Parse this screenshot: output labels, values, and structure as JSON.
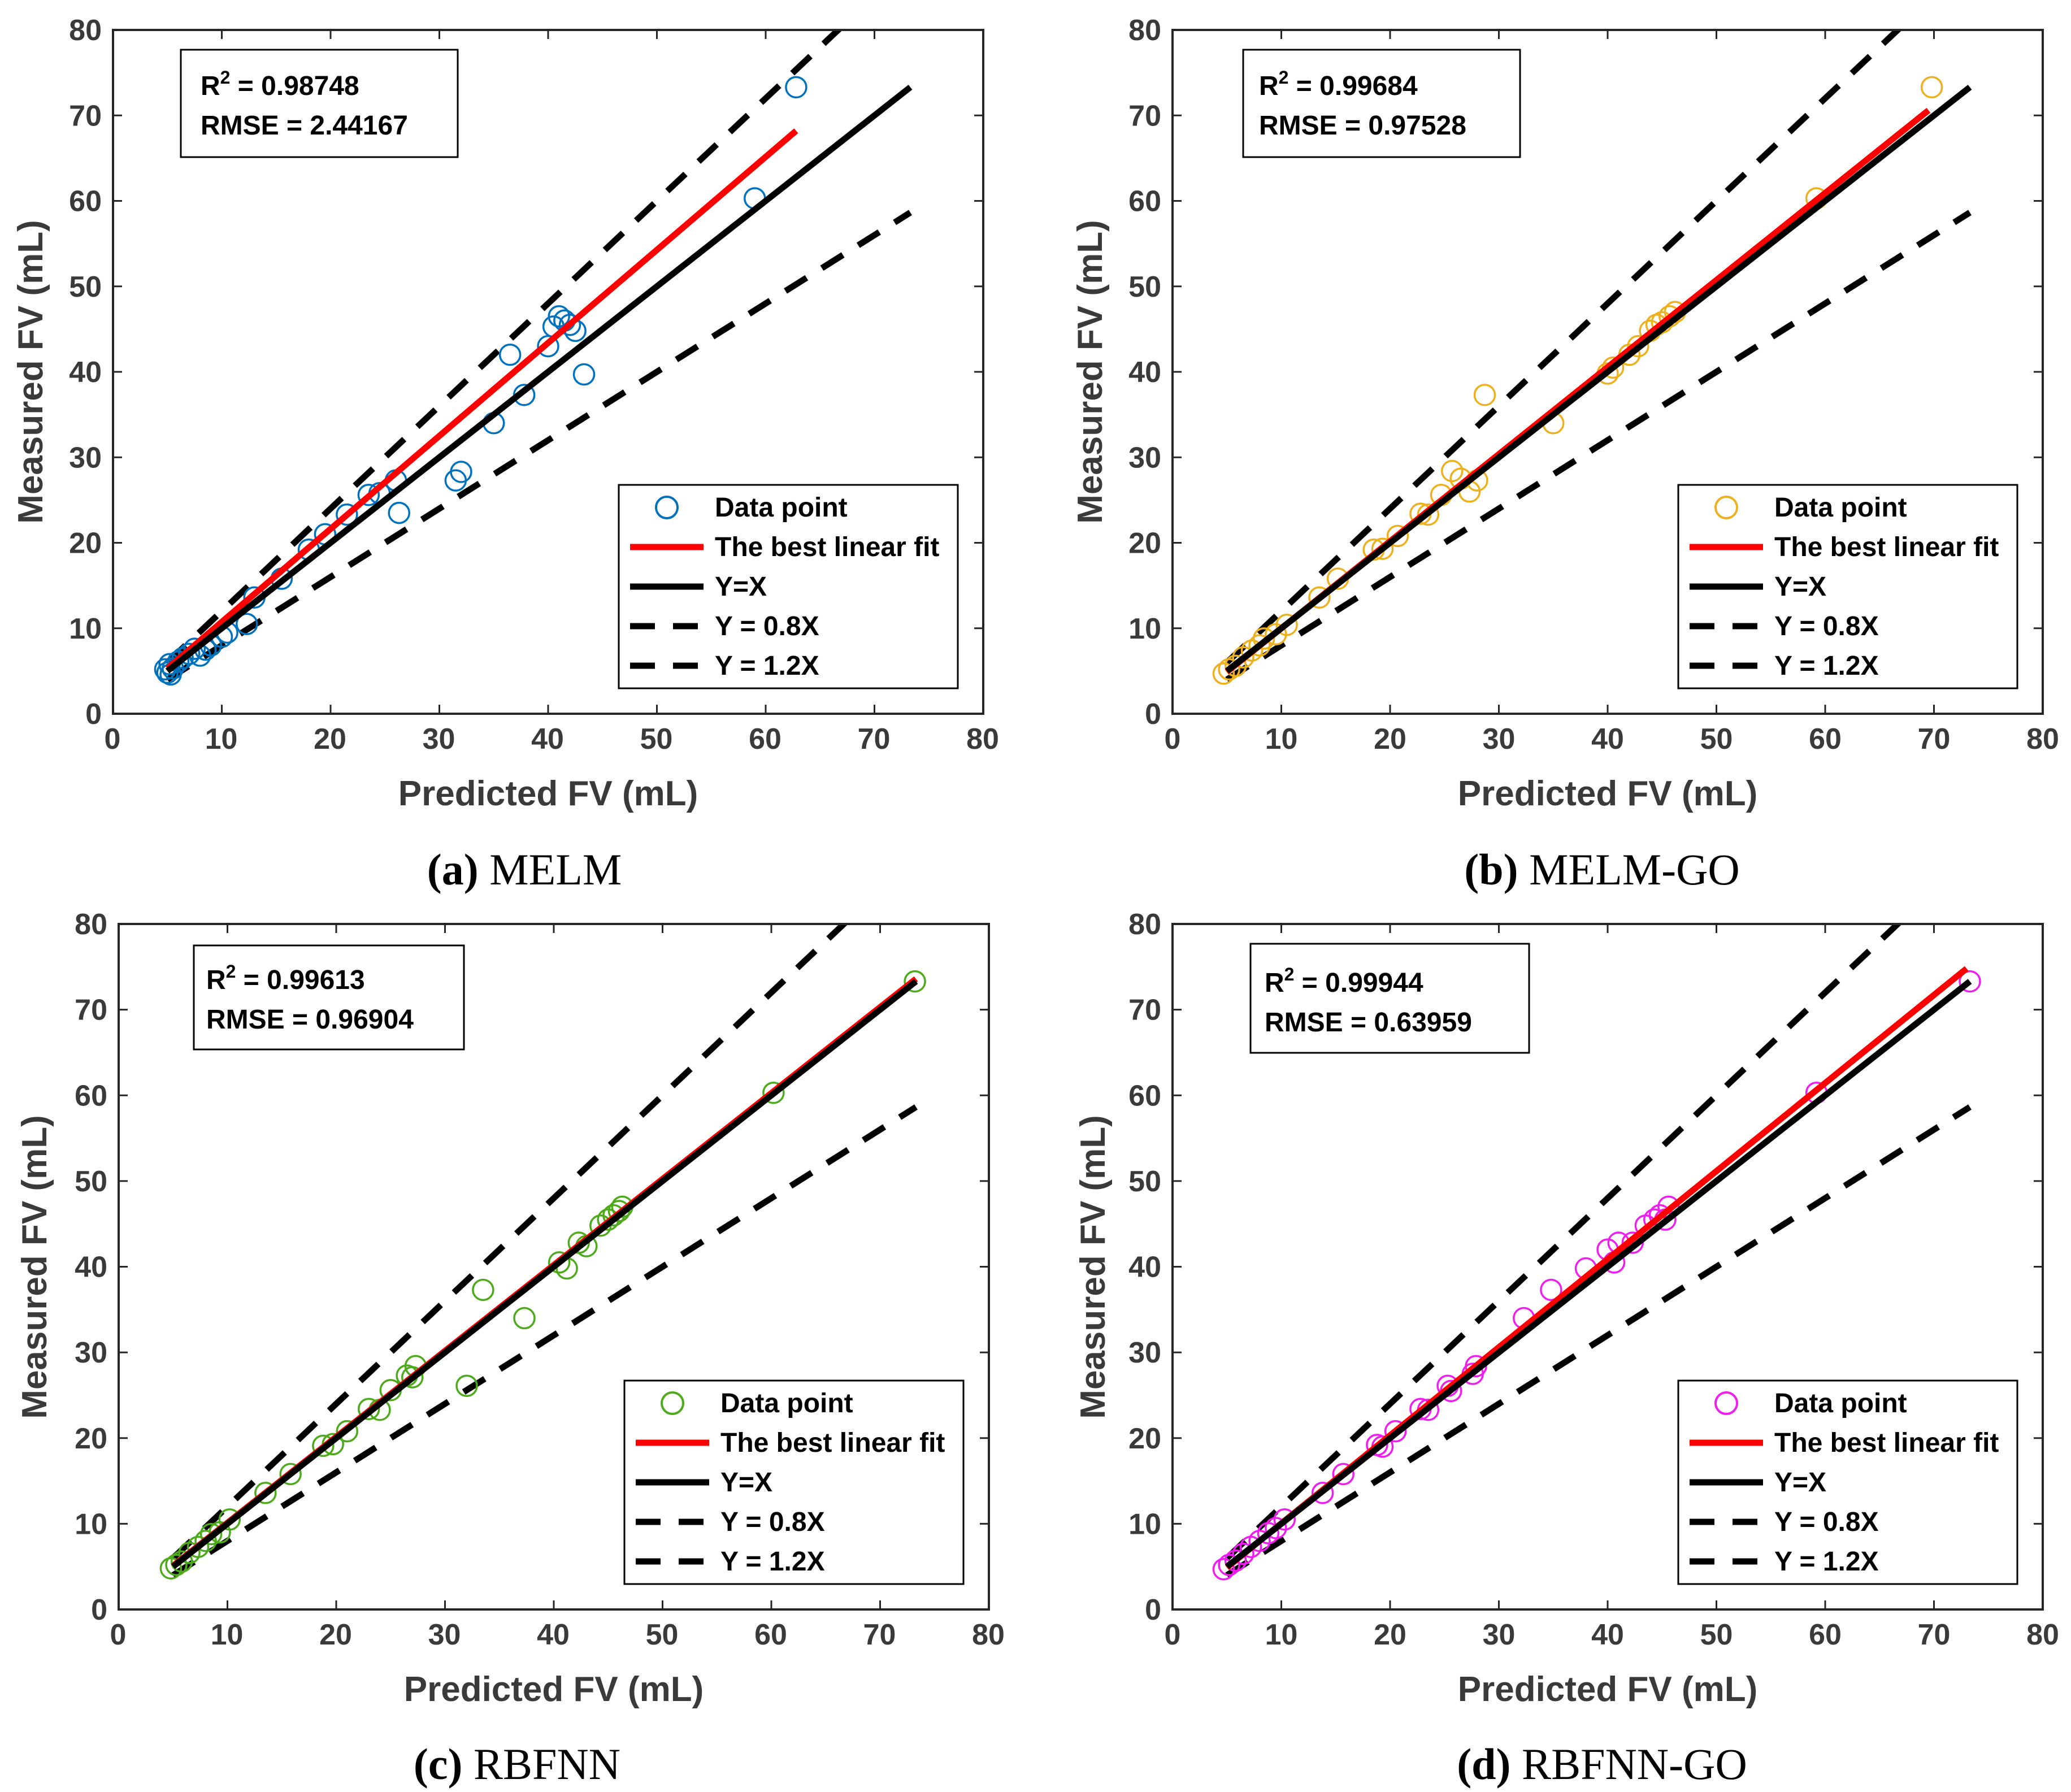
{
  "colors": {
    "melm": "#0072BD",
    "melm_go": "#EDB120",
    "rbfnn": "#4DAA1A",
    "rbfnn_go": "#EE1FEE",
    "best_fit": "#FF0000",
    "reference_lines": "#000000"
  },
  "chart_data": [
    {
      "type": "scatter",
      "panel": "a",
      "caption_letter": "(a)",
      "caption_name": "MELM",
      "xlabel": "Predicted FV (mL)",
      "ylabel": "Measured FV (mL)",
      "xlim": [
        0,
        80
      ],
      "ylim": [
        0,
        80
      ],
      "xticks": [
        "0",
        "10",
        "20",
        "30",
        "40",
        "50",
        "60",
        "70",
        "80"
      ],
      "yticks": [
        "0",
        "10",
        "20",
        "30",
        "40",
        "50",
        "60",
        "70",
        "80"
      ],
      "grid": false,
      "legend_position": "lower-right",
      "marker_color_key": "melm",
      "stats": {
        "r2_label": "R",
        "r2_sup": "2",
        "r2_value": " = 0.98748",
        "rmse_text": "RMSE = 2.44167"
      },
      "legend": {
        "data": "Data point",
        "fit": "The best linear fit",
        "yx": "Y=X",
        "y08": "Y = 0.8X",
        "y12": "Y = 1.2X"
      },
      "best_fit": {
        "x": [
          5,
          62.8
        ],
        "y": [
          5.3,
          68.2
        ]
      },
      "reference_x_range": [
        5,
        73.3
      ],
      "points": [
        [
          4.8,
          5.2
        ],
        [
          5.0,
          4.8
        ],
        [
          5.2,
          5.8
        ],
        [
          5.3,
          4.6
        ],
        [
          5.5,
          5.3
        ],
        [
          6.0,
          6.1
        ],
        [
          6.4,
          6.5
        ],
        [
          7.0,
          7.0
        ],
        [
          7.5,
          7.6
        ],
        [
          8.0,
          6.8
        ],
        [
          8.5,
          7.5
        ],
        [
          9.0,
          8.0
        ],
        [
          10.0,
          9.0
        ],
        [
          10.5,
          9.5
        ],
        [
          12.3,
          10.5
        ],
        [
          13.0,
          13.6
        ],
        [
          15.5,
          15.8
        ],
        [
          18.0,
          19.2
        ],
        [
          19.5,
          21.0
        ],
        [
          21.5,
          23.3
        ],
        [
          23.5,
          25.6
        ],
        [
          24.5,
          25.8
        ],
        [
          26.0,
          27.3
        ],
        [
          26.3,
          23.5
        ],
        [
          31.5,
          27.3
        ],
        [
          32.0,
          28.3
        ],
        [
          35.0,
          34.0
        ],
        [
          36.5,
          42.0
        ],
        [
          37.8,
          37.3
        ],
        [
          40.0,
          43.0
        ],
        [
          40.5,
          45.3
        ],
        [
          41.0,
          46.5
        ],
        [
          41.5,
          46.0
        ],
        [
          42.0,
          45.5
        ],
        [
          42.5,
          44.8
        ],
        [
          43.3,
          39.7
        ],
        [
          59.0,
          60.3
        ],
        [
          62.8,
          73.3
        ]
      ]
    },
    {
      "type": "scatter",
      "panel": "b",
      "caption_letter": "(b)",
      "caption_name": "MELM-GO",
      "xlabel": "Predicted FV (mL)",
      "ylabel": "Measured FV (mL)",
      "xlim": [
        0,
        80
      ],
      "ylim": [
        0,
        80
      ],
      "xticks": [
        "0",
        "10",
        "20",
        "30",
        "40",
        "50",
        "60",
        "70",
        "80"
      ],
      "yticks": [
        "0",
        "10",
        "20",
        "30",
        "40",
        "50",
        "60",
        "70",
        "80"
      ],
      "grid": false,
      "legend_position": "lower-right",
      "marker_color_key": "melm_go",
      "stats": {
        "r2_label": "R",
        "r2_sup": "2",
        "r2_value": " = 0.99684",
        "rmse_text": "RMSE = 0.97528"
      },
      "legend": {
        "data": "Data point",
        "fit": "The best linear fit",
        "yx": "Y=X",
        "y08": "Y = 0.8X",
        "y12": "Y = 1.2X"
      },
      "best_fit": {
        "x": [
          5,
          69.5
        ],
        "y": [
          4.9,
          70.6
        ]
      },
      "reference_x_range": [
        5,
        73.3
      ],
      "points": [
        [
          4.7,
          4.7
        ],
        [
          5.2,
          5.2
        ],
        [
          5.8,
          5.6
        ],
        [
          6.5,
          6.6
        ],
        [
          7.3,
          7.4
        ],
        [
          8.0,
          8.0
        ],
        [
          8.4,
          8.8
        ],
        [
          9.5,
          9.3
        ],
        [
          10.5,
          10.4
        ],
        [
          13.5,
          13.6
        ],
        [
          15.2,
          15.8
        ],
        [
          18.5,
          19.2
        ],
        [
          19.3,
          19.3
        ],
        [
          20.7,
          20.8
        ],
        [
          22.8,
          23.4
        ],
        [
          23.5,
          23.3
        ],
        [
          24.7,
          25.6
        ],
        [
          25.7,
          28.4
        ],
        [
          26.5,
          27.5
        ],
        [
          27.3,
          26.0
        ],
        [
          28.0,
          27.3
        ],
        [
          28.7,
          37.3
        ],
        [
          35.0,
          34.0
        ],
        [
          40.0,
          39.8
        ],
        [
          40.5,
          40.5
        ],
        [
          42.0,
          42.0
        ],
        [
          42.8,
          43.0
        ],
        [
          43.9,
          44.8
        ],
        [
          44.5,
          45.5
        ],
        [
          45.0,
          45.8
        ],
        [
          45.7,
          46.5
        ],
        [
          46.2,
          47.0
        ],
        [
          59.2,
          60.3
        ],
        [
          69.8,
          73.3
        ]
      ]
    },
    {
      "type": "scatter",
      "panel": "c",
      "caption_letter": "(c)",
      "caption_name": "RBFNN",
      "xlabel": "Predicted FV (mL)",
      "ylabel": "Measured FV (mL)",
      "xlim": [
        0,
        80
      ],
      "ylim": [
        0,
        80
      ],
      "xticks": [
        "0",
        "10",
        "20",
        "30",
        "40",
        "50",
        "60",
        "70",
        "80"
      ],
      "yticks": [
        "0",
        "10",
        "20",
        "30",
        "40",
        "50",
        "60",
        "70",
        "80"
      ],
      "grid": false,
      "legend_position": "lower-right",
      "marker_color_key": "rbfnn",
      "stats": {
        "r2_label": "R",
        "r2_sup": "2",
        "r2_value": " = 0.99613",
        "rmse_text": "RMSE = 0.96904"
      },
      "legend": {
        "data": "Data point",
        "fit": "The best linear fit",
        "yx": "Y=X",
        "y08": "Y = 0.8X",
        "y12": "Y = 1.2X"
      },
      "best_fit": {
        "x": [
          5,
          73.3
        ],
        "y": [
          5.1,
          73.6
        ]
      },
      "reference_x_range": [
        5,
        73.3
      ],
      "points": [
        [
          4.8,
          4.8
        ],
        [
          5.3,
          5.2
        ],
        [
          5.8,
          5.6
        ],
        [
          6.5,
          6.6
        ],
        [
          7.3,
          7.3
        ],
        [
          8.0,
          8.0
        ],
        [
          8.5,
          8.8
        ],
        [
          9.3,
          9.0
        ],
        [
          10.2,
          10.5
        ],
        [
          13.5,
          13.6
        ],
        [
          15.8,
          15.8
        ],
        [
          18.8,
          19.1
        ],
        [
          19.7,
          19.3
        ],
        [
          21.0,
          20.8
        ],
        [
          23.0,
          23.4
        ],
        [
          24.0,
          23.3
        ],
        [
          25.0,
          25.6
        ],
        [
          26.5,
          27.3
        ],
        [
          27.3,
          28.4
        ],
        [
          27.0,
          27.1
        ],
        [
          32.0,
          26.1
        ],
        [
          33.5,
          37.3
        ],
        [
          37.3,
          34.0
        ],
        [
          40.5,
          40.5
        ],
        [
          41.2,
          39.8
        ],
        [
          42.3,
          42.8
        ],
        [
          43.0,
          42.4
        ],
        [
          44.3,
          44.8
        ],
        [
          45.0,
          45.5
        ],
        [
          45.5,
          46.0
        ],
        [
          46.0,
          46.5
        ],
        [
          46.3,
          47.0
        ],
        [
          60.2,
          60.3
        ],
        [
          73.2,
          73.3
        ]
      ]
    },
    {
      "type": "scatter",
      "panel": "d",
      "caption_letter": "(d)",
      "caption_name": "RBFNN-GO",
      "xlabel": "Predicted FV (mL)",
      "ylabel": "Measured FV (mL)",
      "xlim": [
        0,
        80
      ],
      "ylim": [
        0,
        80
      ],
      "xticks": [
        "0",
        "10",
        "20",
        "30",
        "40",
        "50",
        "60",
        "70",
        "80"
      ],
      "yticks": [
        "0",
        "10",
        "20",
        "30",
        "40",
        "50",
        "60",
        "70",
        "80"
      ],
      "grid": false,
      "legend_position": "lower-right",
      "marker_color_key": "rbfnn_go",
      "stats": {
        "r2_label": "R",
        "r2_sup": "2",
        "r2_value": " = 0.99944",
        "rmse_text": "RMSE = 0.63959"
      },
      "legend": {
        "data": "Data point",
        "fit": "The best linear fit",
        "yx": "Y=X",
        "y08": "Y = 0.8X",
        "y12": "Y = 1.2X"
      },
      "best_fit": {
        "x": [
          5,
          73
        ],
        "y": [
          4.9,
          74.8
        ]
      },
      "reference_x_range": [
        5,
        73.3
      ],
      "points": [
        [
          4.7,
          4.7
        ],
        [
          5.2,
          5.2
        ],
        [
          5.8,
          5.7
        ],
        [
          6.5,
          6.5
        ],
        [
          7.2,
          7.3
        ],
        [
          8.0,
          8.0
        ],
        [
          8.8,
          8.9
        ],
        [
          9.5,
          9.5
        ],
        [
          10.3,
          10.5
        ],
        [
          13.8,
          13.6
        ],
        [
          15.7,
          15.8
        ],
        [
          18.8,
          19.2
        ],
        [
          19.3,
          19.0
        ],
        [
          20.5,
          20.8
        ],
        [
          22.8,
          23.4
        ],
        [
          23.5,
          23.3
        ],
        [
          25.3,
          26.1
        ],
        [
          25.6,
          25.5
        ],
        [
          27.6,
          27.5
        ],
        [
          27.9,
          28.4
        ],
        [
          32.3,
          34.0
        ],
        [
          34.8,
          37.3
        ],
        [
          38.0,
          39.8
        ],
        [
          40.0,
          42.0
        ],
        [
          40.6,
          40.5
        ],
        [
          41.0,
          42.8
        ],
        [
          42.3,
          42.8
        ],
        [
          43.5,
          44.8
        ],
        [
          44.3,
          45.5
        ],
        [
          44.8,
          46.0
        ],
        [
          45.3,
          45.5
        ],
        [
          45.6,
          47.0
        ],
        [
          59.2,
          60.3
        ],
        [
          73.3,
          73.3
        ]
      ]
    }
  ]
}
